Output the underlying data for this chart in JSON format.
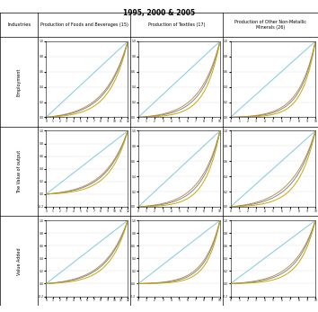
{
  "title": "1995, 2000 & 2005",
  "col_headers": [
    "Industries",
    "Production of Foods and Beverages (15)",
    "Production of Textiles (17)",
    "Production of Other Non-Metallic\nMinerals (26)"
  ],
  "row_headers": [
    "Employment",
    "The Value of output",
    "Value Added"
  ],
  "colors": {
    "1995": "#c8a96e",
    "2000": "#a0a0a0",
    "2005": "#d4b800"
  },
  "line_color_1995": "#b8915a",
  "line_color_2000": "#888888",
  "line_color_2005": "#c9a800",
  "diagonal_color": "#7ec8e3",
  "background": "#ffffff",
  "grid_color": "#e0e0e0"
}
